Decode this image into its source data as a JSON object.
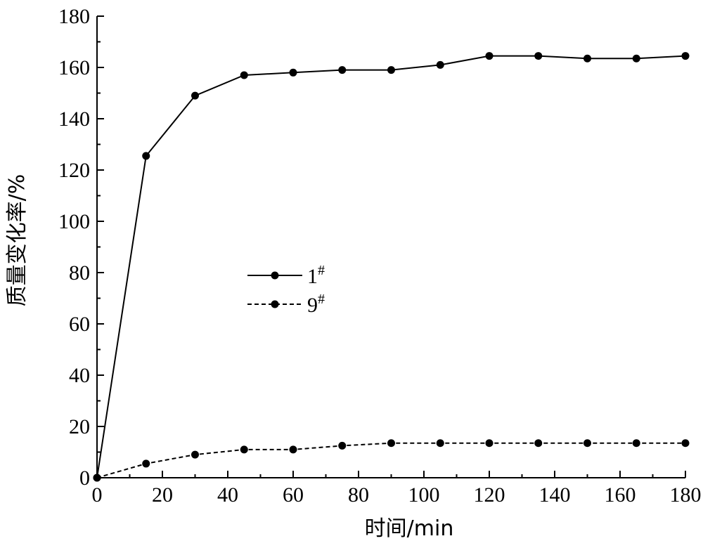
{
  "chart_data": {
    "type": "line",
    "title": "",
    "xlabel": "时间/min",
    "ylabel": "质量变化率/%",
    "xlim": [
      0,
      180
    ],
    "ylim": [
      0,
      180
    ],
    "x_ticks": [
      0,
      20,
      40,
      60,
      80,
      100,
      120,
      140,
      160,
      180
    ],
    "y_ticks": [
      0,
      20,
      40,
      60,
      80,
      100,
      120,
      140,
      160,
      180
    ],
    "x_tick_labels": [
      "0",
      "20",
      "40",
      "60",
      "80",
      "100",
      "120",
      "140",
      "160",
      "180"
    ],
    "y_tick_labels": [
      "0",
      "20",
      "40",
      "60",
      "80",
      "100",
      "120",
      "140",
      "160",
      "180"
    ],
    "grid": false,
    "legend_position": "center-left",
    "x": [
      0,
      15,
      30,
      45,
      60,
      75,
      90,
      105,
      120,
      135,
      150,
      165,
      180
    ],
    "series": [
      {
        "name": "1",
        "name_sup": "#",
        "line_style": "solid",
        "color": "#000000",
        "marker": "circle",
        "values": [
          0,
          125.5,
          149,
          157,
          158,
          159,
          159,
          161,
          164.5,
          164.5,
          163.5,
          163.5,
          164.5
        ]
      },
      {
        "name": "9",
        "name_sup": "#",
        "line_style": "dashed",
        "color": "#000000",
        "marker": "circle",
        "values": [
          0,
          5.5,
          9,
          11,
          11,
          12.5,
          13.5,
          13.5,
          13.5,
          13.5,
          13.5,
          13.5,
          13.5
        ]
      }
    ]
  }
}
